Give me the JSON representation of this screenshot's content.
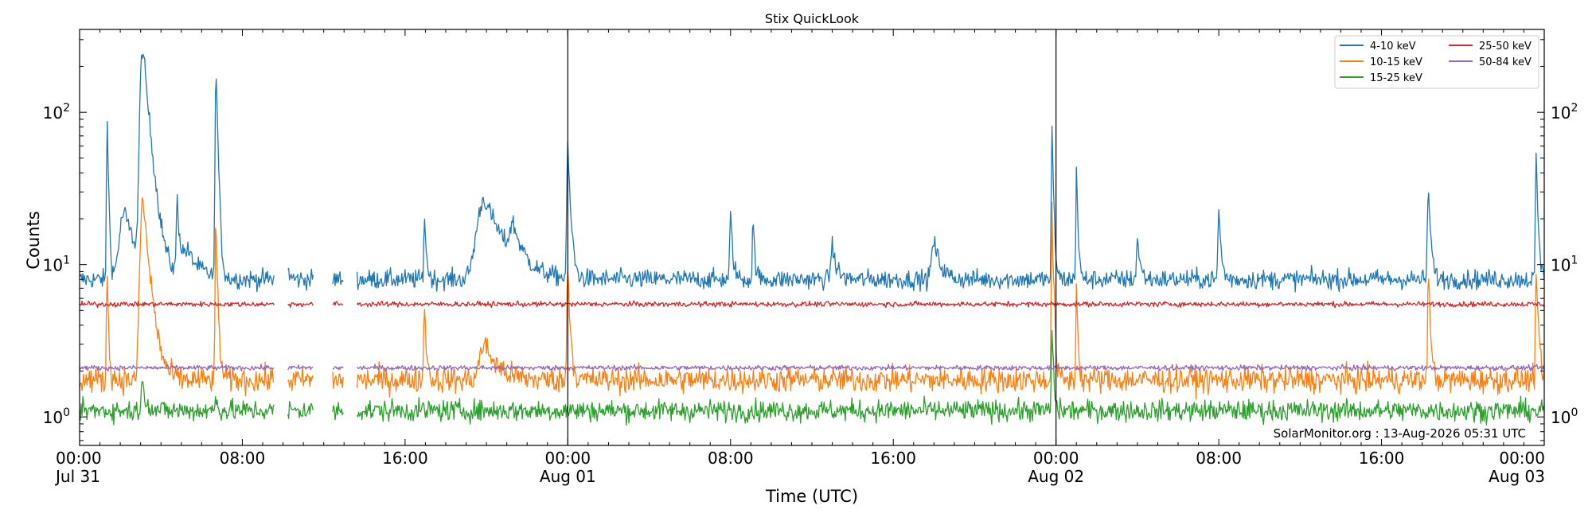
{
  "chart_data": {
    "type": "line",
    "title": "Stix QuickLook",
    "xlabel": "Time (UTC)",
    "ylabel": "Counts",
    "yscale": "log",
    "ylim": [
      0.65,
      350
    ],
    "xlim_hours": [
      0,
      72
    ],
    "x_ticks": [
      {
        "hour": 0,
        "time": "00:00",
        "date": "Jul 31"
      },
      {
        "hour": 8,
        "time": "08:00",
        "date": ""
      },
      {
        "hour": 16,
        "time": "16:00",
        "date": ""
      },
      {
        "hour": 24,
        "time": "00:00",
        "date": "Aug 01"
      },
      {
        "hour": 32,
        "time": "08:00",
        "date": ""
      },
      {
        "hour": 40,
        "time": "16:00",
        "date": ""
      },
      {
        "hour": 48,
        "time": "00:00",
        "date": "Aug 02"
      },
      {
        "hour": 56,
        "time": "08:00",
        "date": ""
      },
      {
        "hour": 64,
        "time": "16:00",
        "date": ""
      },
      {
        "hour": 72,
        "time": "00:00",
        "date": "Aug 03"
      }
    ],
    "y_ticks": [
      {
        "value": 1,
        "label": "10",
        "exp": "0"
      },
      {
        "value": 10,
        "label": "10",
        "exp": "1"
      },
      {
        "value": 100,
        "label": "10",
        "exp": "2"
      }
    ],
    "day_boundaries_hours": [
      24,
      48
    ],
    "data_gaps_hours": [
      [
        9.6,
        10.2
      ],
      [
        11.5,
        12.4
      ],
      [
        13.0,
        13.6
      ]
    ],
    "legend_position": "top-right",
    "series": [
      {
        "name": "4-10 keV",
        "color": "#1f77b4",
        "baseline": 8.0,
        "noise": 0.045,
        "peaks": [
          [
            1.35,
            100,
            0.06
          ],
          [
            2.2,
            22,
            0.6
          ],
          [
            3.1,
            265,
            0.28
          ],
          [
            4.8,
            25,
            0.12
          ],
          [
            5.3,
            12,
            0.6
          ],
          [
            6.7,
            205,
            0.08
          ],
          [
            10.1,
            14,
            0.1
          ],
          [
            16.95,
            22,
            0.08
          ],
          [
            19.9,
            27,
            0.9
          ],
          [
            21.3,
            15,
            0.4
          ],
          [
            24.0,
            55,
            0.12
          ],
          [
            32.0,
            21,
            0.1
          ],
          [
            33.1,
            20,
            0.08
          ],
          [
            37.0,
            13,
            0.2
          ],
          [
            42.0,
            14,
            0.3
          ],
          [
            47.8,
            73,
            0.07
          ],
          [
            49.0,
            48,
            0.06
          ],
          [
            52.0,
            15,
            0.12
          ],
          [
            56.0,
            23,
            0.1
          ],
          [
            66.3,
            33,
            0.1
          ],
          [
            71.6,
            50,
            0.08
          ]
        ]
      },
      {
        "name": "10-15 keV",
        "color": "#ff7f0e",
        "baseline": 1.75,
        "noise": 0.06,
        "peaks": [
          [
            1.35,
            10,
            0.06
          ],
          [
            3.1,
            27,
            0.28
          ],
          [
            6.7,
            18,
            0.08
          ],
          [
            16.95,
            6,
            0.08
          ],
          [
            19.9,
            3,
            0.6
          ],
          [
            24.0,
            10,
            0.1
          ],
          [
            47.8,
            22,
            0.07
          ],
          [
            49.0,
            8,
            0.06
          ],
          [
            66.3,
            10,
            0.08
          ],
          [
            71.6,
            10,
            0.08
          ]
        ]
      },
      {
        "name": "15-25 keV",
        "color": "#2ca02c",
        "baseline": 1.1,
        "noise": 0.05,
        "peaks": [
          [
            3.1,
            1.6,
            0.2
          ],
          [
            6.7,
            1.4,
            0.08
          ],
          [
            47.8,
            3.8,
            0.07
          ]
        ]
      },
      {
        "name": "25-50 keV",
        "color": "#d62728",
        "baseline": 5.5,
        "noise": 0.012,
        "peaks": []
      },
      {
        "name": "50-84 keV",
        "color": "#9467bd",
        "baseline": 2.1,
        "noise": 0.012,
        "peaks": []
      }
    ]
  },
  "footer": {
    "watermark": "SolarMonitor.org : 13-Aug-2026 05:31 UTC"
  }
}
